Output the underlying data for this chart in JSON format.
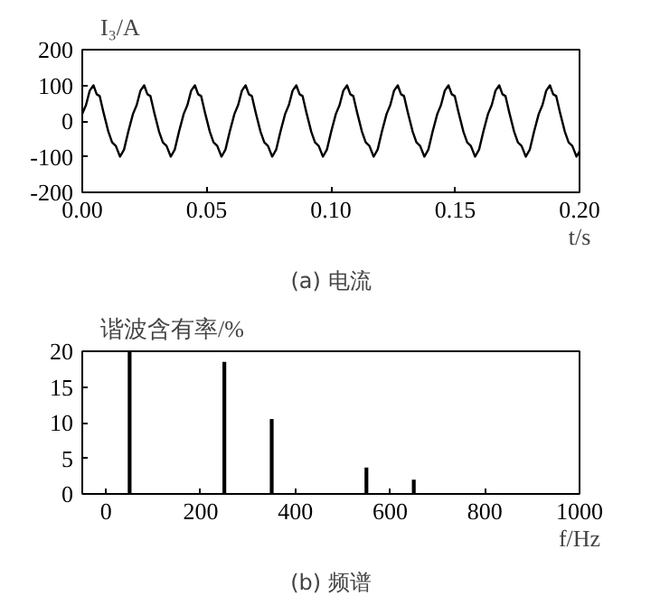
{
  "chart_data": [
    {
      "type": "line",
      "title": "(a) 电流",
      "xlabel": "t/s",
      "ylabel": "I₃/A",
      "color": "#000000",
      "x": [
        0,
        0.0015,
        0.003,
        0.0045,
        0.0058,
        0.007,
        0.0085,
        0.0105,
        0.012,
        0.0135,
        0.0152,
        0.0168,
        0.0185,
        0.0204,
        0.0219,
        0.0234,
        0.0249,
        0.0262,
        0.0274,
        0.0289,
        0.0309,
        0.0324,
        0.0339,
        0.0356,
        0.0372,
        0.0389,
        0.0408,
        0.0423,
        0.0438,
        0.0453,
        0.0466,
        0.0478,
        0.0493,
        0.0513,
        0.0528,
        0.0543,
        0.056,
        0.0576,
        0.0593,
        0.0612,
        0.0627,
        0.0642,
        0.0657,
        0.067,
        0.0682,
        0.0697,
        0.0717,
        0.0732,
        0.0747,
        0.0764,
        0.078,
        0.0797,
        0.0816,
        0.0831,
        0.0846,
        0.0861,
        0.0874,
        0.0886,
        0.0901,
        0.0921,
        0.0936,
        0.0951,
        0.0968,
        0.0984,
        0.1001,
        0.102,
        0.1035,
        0.105,
        0.1065,
        0.1078,
        0.109,
        0.1105,
        0.1125,
        0.114,
        0.1155,
        0.1172,
        0.1188,
        0.1205,
        0.1224,
        0.1239,
        0.1254,
        0.1269,
        0.1282,
        0.1294,
        0.1309,
        0.1329,
        0.1344,
        0.1359,
        0.1376,
        0.1392,
        0.1409,
        0.1428,
        0.1443,
        0.1458,
        0.1473,
        0.1486,
        0.1498,
        0.1513,
        0.1533,
        0.1548,
        0.1563,
        0.158,
        0.1596,
        0.1613,
        0.1632,
        0.1647,
        0.1662,
        0.1677,
        0.169,
        0.1702,
        0.1717,
        0.1737,
        0.1752,
        0.1767,
        0.1784,
        0.18,
        0.1817,
        0.1836,
        0.1851,
        0.1866,
        0.1881,
        0.1894,
        0.1906,
        0.1921,
        0.1941,
        0.1956,
        0.1971,
        0.1988,
        0.2
      ],
      "values": [
        20,
        45,
        85,
        100,
        75,
        70,
        25,
        -30,
        -60,
        -70,
        -100,
        -80,
        -30,
        20,
        45,
        85,
        100,
        75,
        70,
        25,
        -30,
        -60,
        -70,
        -100,
        -80,
        -30,
        20,
        45,
        85,
        100,
        75,
        70,
        25,
        -30,
        -60,
        -70,
        -100,
        -80,
        -30,
        20,
        45,
        85,
        100,
        75,
        70,
        25,
        -30,
        -60,
        -70,
        -100,
        -80,
        -30,
        20,
        45,
        85,
        100,
        75,
        70,
        25,
        -30,
        -60,
        -70,
        -100,
        -80,
        -30,
        20,
        45,
        85,
        100,
        75,
        70,
        25,
        -30,
        -60,
        -70,
        -100,
        -80,
        -30,
        20,
        45,
        85,
        100,
        75,
        70,
        25,
        -30,
        -60,
        -70,
        -100,
        -80,
        -30,
        20,
        45,
        85,
        100,
        75,
        70,
        25,
        -30,
        -60,
        -70,
        -100,
        -80,
        -30,
        20,
        45,
        85,
        100,
        75,
        70,
        25,
        -30,
        -60,
        -70,
        -100,
        -80,
        -30,
        20,
        45,
        85,
        100,
        75,
        70,
        25,
        -30,
        -60,
        -70,
        -100,
        -85
      ],
      "xlim": [
        0,
        0.2
      ],
      "ylim": [
        -200,
        200
      ],
      "xticks": [
        {
          "value": 0,
          "label": "0.00"
        },
        {
          "value": 0.05,
          "label": "0.05"
        },
        {
          "value": 0.1,
          "label": "0.10"
        },
        {
          "value": 0.15,
          "label": "0.15"
        },
        {
          "value": 0.2,
          "label": "0.20"
        }
      ],
      "yticks": [
        -200,
        -100,
        0,
        100,
        200
      ]
    },
    {
      "type": "bar",
      "title": "(b) 频谱",
      "xlabel": "f/Hz",
      "ylabel": "谐波含有率/%",
      "color": "#000000",
      "x": [
        50,
        250,
        350,
        550,
        650
      ],
      "values": [
        20,
        18.5,
        10.5,
        3.7,
        2
      ],
      "xlim": [
        -50,
        1000
      ],
      "ylim": [
        0,
        20
      ],
      "xticks": [
        0,
        200,
        400,
        600,
        800,
        1000
      ],
      "yticks": [
        0,
        5,
        10,
        15,
        20
      ]
    }
  ]
}
